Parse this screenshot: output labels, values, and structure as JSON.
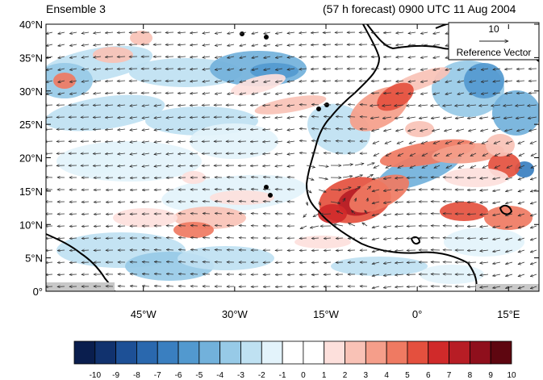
{
  "header": {
    "title_left": "Ensemble 3",
    "title_right": "(57 h forecast) 0900 UTC 11 Aug 2004"
  },
  "axes": {
    "lat_ticks": [
      "40°N",
      "35°N",
      "30°N",
      "25°N",
      "20°N",
      "15°N",
      "10°N",
      "5°N",
      "0°"
    ],
    "lon_ticks": [
      "45°W",
      "30°W",
      "15°W",
      "0°",
      "15°E"
    ]
  },
  "reference": {
    "magnitude": "10",
    "label": "Reference Vector"
  },
  "colorbar": {
    "labels": [
      "-10",
      "-9",
      "-8",
      "-7",
      "-6",
      "-5",
      "-4",
      "-3",
      "-2",
      "-1",
      "0",
      "1",
      "2",
      "3",
      "4",
      "5",
      "6",
      "7",
      "8",
      "9",
      "10"
    ],
    "colors": [
      "#0a1e4e",
      "#11326e",
      "#1d5096",
      "#2a68ae",
      "#3a7fc0",
      "#5299cf",
      "#72b1db",
      "#97cae7",
      "#bfe1f2",
      "#e3f3fb",
      "#ffffff",
      "#ffffff",
      "#fde0dc",
      "#f9c2b6",
      "#f59e8a",
      "#ef7a62",
      "#e4503e",
      "#d02a2a",
      "#b71d25",
      "#8f0f1c",
      "#5e0610"
    ]
  },
  "map": {
    "lon_range": [
      -61,
      20
    ],
    "lat_range": [
      0,
      40
    ],
    "lon_tick_values": [
      -45,
      -30,
      -15,
      0,
      15
    ],
    "lat_tick_values": [
      40,
      35,
      30,
      25,
      20,
      15,
      10,
      5,
      0
    ],
    "land_color": "#c8c8c8",
    "ocean_color": "#ffffff"
  }
}
